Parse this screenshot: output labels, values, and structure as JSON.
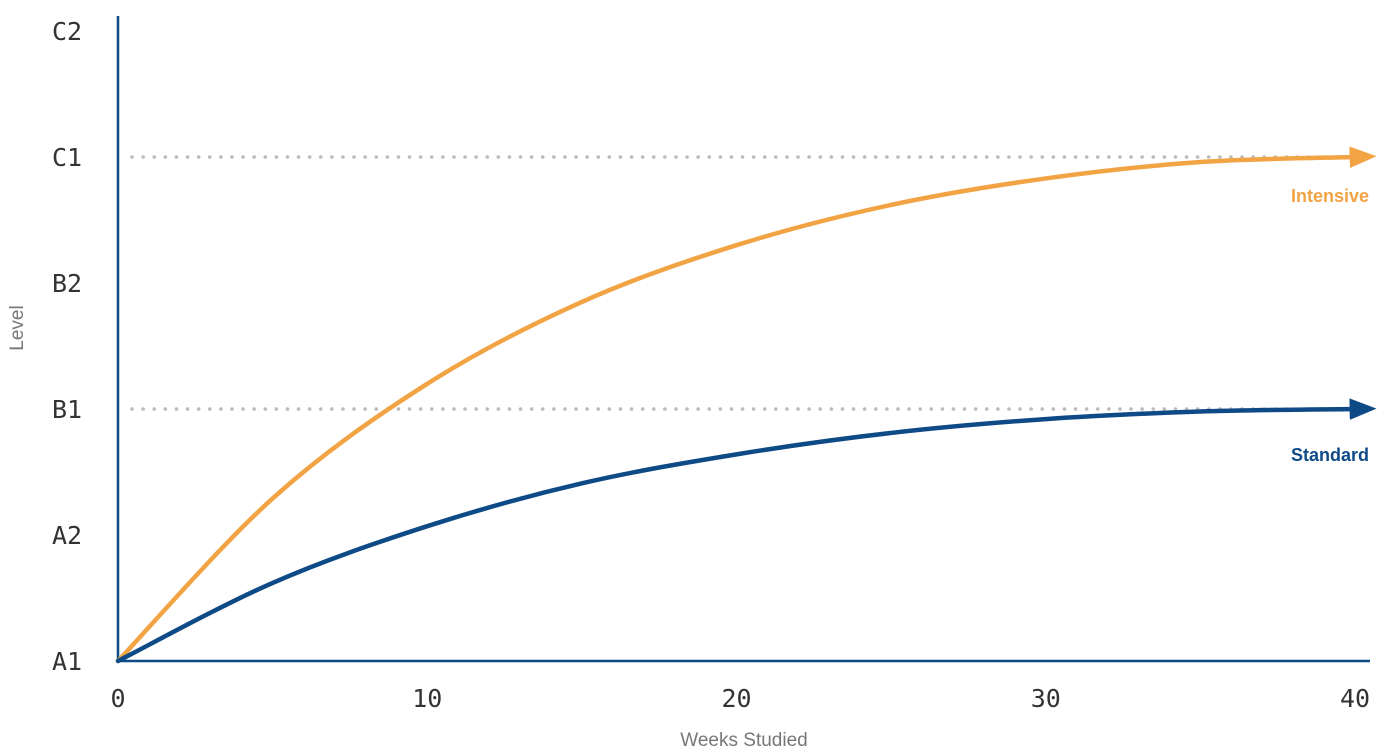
{
  "chart_data": {
    "type": "line",
    "xlabel": "Weeks Studied",
    "ylabel": "Level",
    "x_ticks": [
      "0",
      "10",
      "20",
      "30",
      "40"
    ],
    "y_ticks": [
      "A1",
      "A2",
      "B1",
      "B2",
      "C1",
      "C2"
    ],
    "xlim": [
      0,
      40
    ],
    "ylim": [
      0,
      5
    ],
    "grid": false,
    "reference_lines": [
      {
        "level": "C1",
        "y": 4,
        "style": "dotted",
        "color": "#bbbbbb"
      },
      {
        "level": "B1",
        "y": 2,
        "style": "dotted",
        "color": "#bbbbbb"
      }
    ],
    "series": [
      {
        "name": "Intensive",
        "color": "#f2a444",
        "x": [
          0,
          5,
          10,
          15,
          20,
          25,
          30,
          35,
          40
        ],
        "y": [
          0,
          1.29,
          2.2,
          2.85,
          3.3,
          3.62,
          3.83,
          3.96,
          4.0
        ]
      },
      {
        "name": "Standard",
        "color": "#0e4a86",
        "x": [
          0,
          5,
          10,
          15,
          20,
          25,
          30,
          35,
          40
        ],
        "y": [
          0,
          0.62,
          1.07,
          1.41,
          1.64,
          1.81,
          1.92,
          1.98,
          2.0
        ]
      }
    ]
  }
}
